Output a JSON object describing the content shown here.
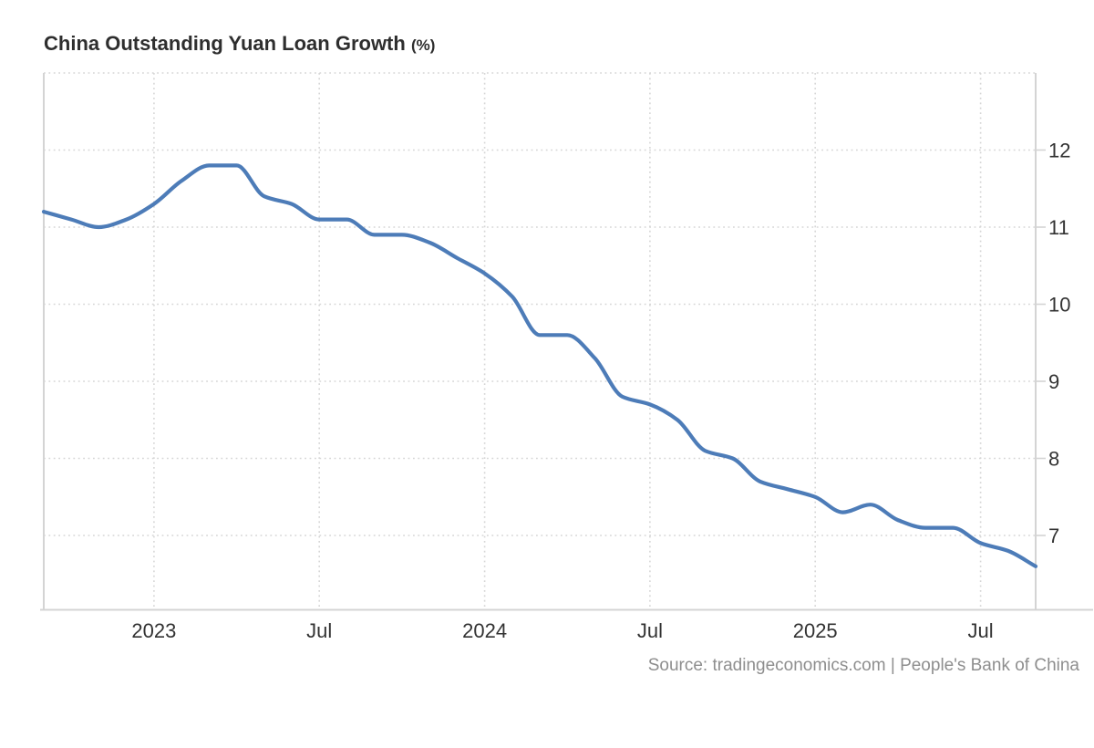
{
  "header": {
    "title": "China Outstanding Yuan Loan Growth",
    "unit": "(%)"
  },
  "footer": {
    "source": "Source: tradingeconomics.com | People's Bank of China"
  },
  "colors": {
    "line": "#4d7cb8",
    "grid": "#d6d6d6",
    "axis": "#d4d4d4",
    "tick_label": "#333333",
    "title": "#2e2e2e",
    "source": "#8e8e8e",
    "background": "#ffffff"
  },
  "chart_data": {
    "type": "line",
    "title": "China Outstanding Yuan Loan Growth (%)",
    "series_name": "Outstanding Yuan Loan Growth",
    "unit": "%",
    "xlabel": "",
    "ylabel": "%",
    "grid": true,
    "legend_position": "none",
    "ylim": [
      6.0,
      13.0
    ],
    "y_ticks": [
      12,
      11,
      10,
      9,
      8,
      7
    ],
    "y_gridlines": [
      13,
      12,
      11,
      10,
      9,
      8,
      7
    ],
    "x_ticks": [
      {
        "label": "2023",
        "month": "2023-01"
      },
      {
        "label": "Jul",
        "month": "2023-07"
      },
      {
        "label": "2024",
        "month": "2024-01"
      },
      {
        "label": "Jul",
        "month": "2024-07"
      },
      {
        "label": "2025",
        "month": "2025-01"
      },
      {
        "label": "Jul",
        "month": "2025-07"
      }
    ],
    "x": [
      "2022-09",
      "2022-10",
      "2022-11",
      "2022-12",
      "2023-01",
      "2023-02",
      "2023-03",
      "2023-04",
      "2023-05",
      "2023-06",
      "2023-07",
      "2023-08",
      "2023-09",
      "2023-10",
      "2023-11",
      "2023-12",
      "2024-01",
      "2024-02",
      "2024-03",
      "2024-04",
      "2024-05",
      "2024-06",
      "2024-07",
      "2024-08",
      "2024-09",
      "2024-10",
      "2024-11",
      "2024-12",
      "2025-01",
      "2025-02",
      "2025-03",
      "2025-04",
      "2025-05",
      "2025-06",
      "2025-07",
      "2025-08",
      "2025-09"
    ],
    "values": [
      11.2,
      11.1,
      11.0,
      11.1,
      11.3,
      11.6,
      11.8,
      11.8,
      11.4,
      11.3,
      11.1,
      11.1,
      10.9,
      10.9,
      10.8,
      10.6,
      10.4,
      10.1,
      9.6,
      9.6,
      9.3,
      8.8,
      8.7,
      8.5,
      8.1,
      8.0,
      7.7,
      7.6,
      7.5,
      7.3,
      7.4,
      7.2,
      7.1,
      7.1,
      6.9,
      6.8,
      6.6
    ]
  }
}
